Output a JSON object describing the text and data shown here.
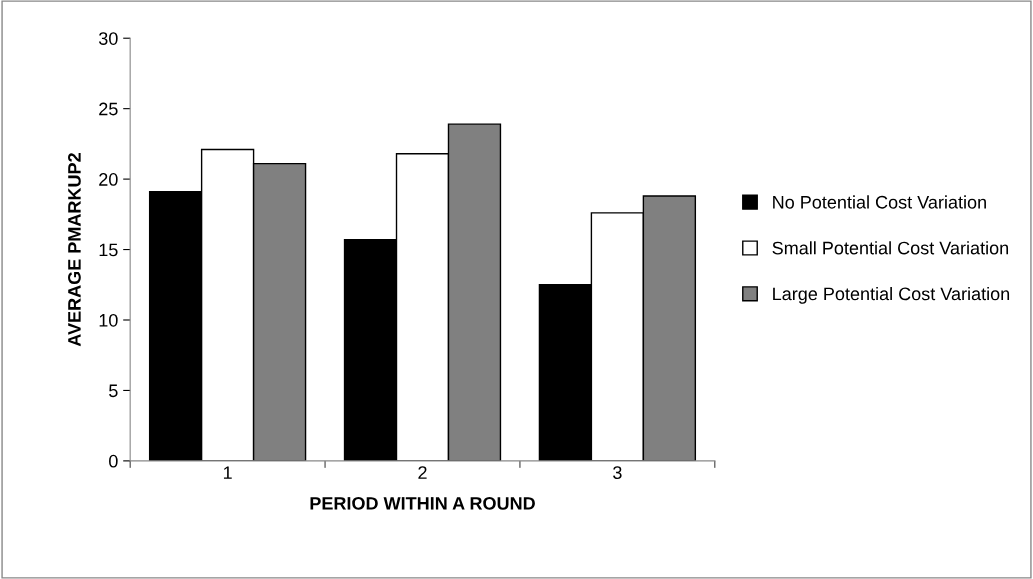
{
  "chart_data": {
    "type": "bar",
    "xlabel": "PERIOD WITHIN A ROUND",
    "ylabel": "AVERAGE PMARKUP2",
    "categories": [
      "1",
      "2",
      "3"
    ],
    "series": [
      {
        "name": "No Potential Cost Variation",
        "color": "#000000",
        "values": [
          19.1,
          15.7,
          12.5
        ]
      },
      {
        "name": "Small Potential Cost Variation",
        "color": "#ffffff",
        "values": [
          22.1,
          21.8,
          17.6
        ]
      },
      {
        "name": "Large Potential Cost Variation",
        "color": "#808080",
        "values": [
          21.1,
          23.9,
          18.8
        ]
      }
    ],
    "ylim": [
      0,
      30
    ],
    "yticks": [
      0,
      5,
      10,
      15,
      20,
      25,
      30
    ],
    "grid": false,
    "legend": "right"
  }
}
